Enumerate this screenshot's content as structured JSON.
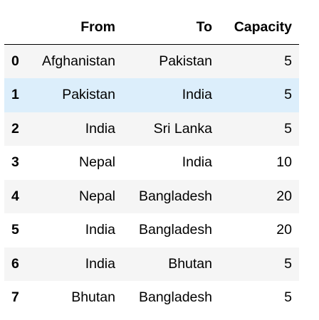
{
  "table": {
    "columns": [
      "",
      "From",
      "To",
      "Capacity"
    ],
    "rows": [
      {
        "index": "0",
        "from": "Afghanistan",
        "to": "Pakistan",
        "capacity": "5"
      },
      {
        "index": "1",
        "from": "Pakistan",
        "to": "India",
        "capacity": "5"
      },
      {
        "index": "2",
        "from": "India",
        "to": "Sri Lanka",
        "capacity": "5"
      },
      {
        "index": "3",
        "from": "Nepal",
        "to": "India",
        "capacity": "10"
      },
      {
        "index": "4",
        "from": "Nepal",
        "to": "Bangladesh",
        "capacity": "20"
      },
      {
        "index": "5",
        "from": "India",
        "to": "Bangladesh",
        "capacity": "20"
      },
      {
        "index": "6",
        "from": "India",
        "to": "Bhutan",
        "capacity": "5"
      },
      {
        "index": "7",
        "from": "Bhutan",
        "to": "Bangladesh",
        "capacity": "5"
      }
    ],
    "highlighted_row": 1,
    "colors": {
      "stripe": "#f5f5f5",
      "hover": "#dceefb",
      "border": "#000000"
    }
  }
}
